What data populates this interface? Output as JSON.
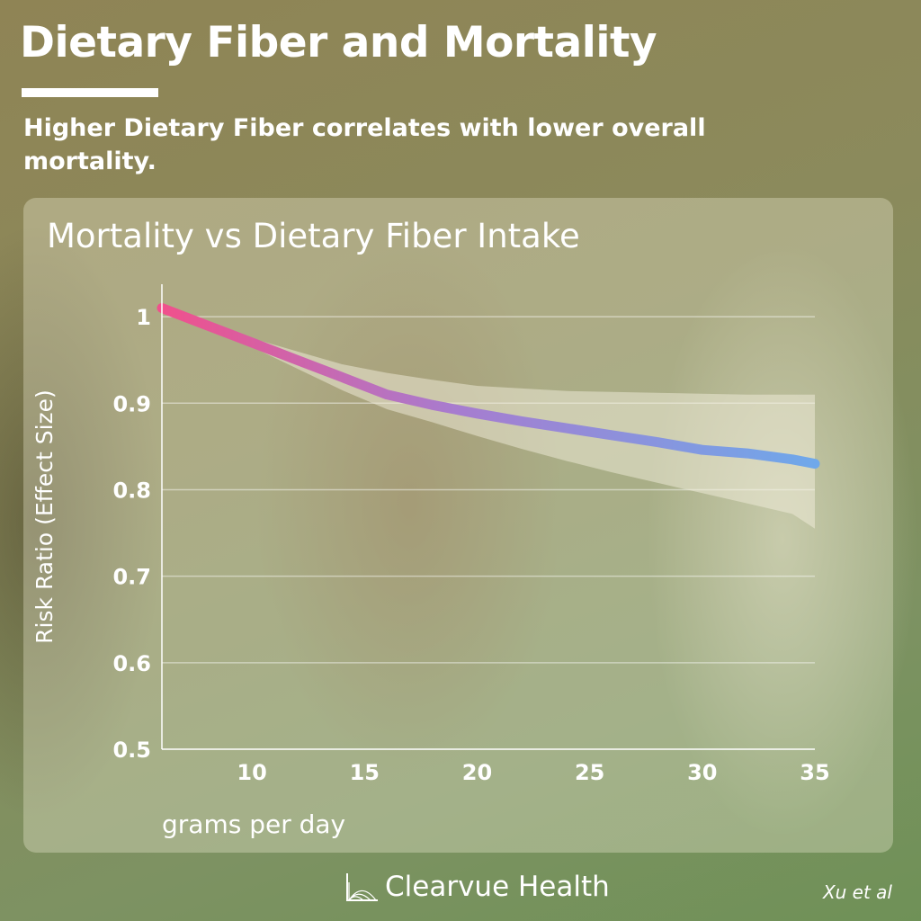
{
  "header": {
    "title": "Dietary Fiber and Mortality",
    "subtitle": "Higher Dietary Fiber correlates with lower overall mortality."
  },
  "footer": {
    "brand": "Clearvue Health",
    "credit": "Xu et al"
  },
  "colors": {
    "line_start": "#f0508c",
    "line_mid": "#a77ccf",
    "line_end": "#6fa8ea",
    "band": "#f2eedc"
  },
  "chart_data": {
    "type": "line",
    "title": "Mortality vs Dietary Fiber Intake",
    "xlabel": "grams per day",
    "ylabel": "Risk Ratio (Effect Size)",
    "xlim": [
      6,
      35
    ],
    "ylim": [
      0.5,
      1.05
    ],
    "x_ticks": [
      10,
      15,
      20,
      25,
      30,
      35
    ],
    "y_ticks": [
      0.5,
      0.6,
      0.7,
      0.8,
      0.9,
      1
    ],
    "y_tick_labels": [
      "0.5",
      "0.6",
      "0.7",
      "0.8",
      "0.9",
      "1"
    ],
    "grid": true,
    "series": [
      {
        "x": [
          6,
          8,
          10,
          12,
          14,
          16,
          18,
          20,
          22,
          24,
          26,
          28,
          30,
          32,
          34,
          35
        ],
        "values": [
          1.01,
          0.99,
          0.97,
          0.95,
          0.93,
          0.91,
          0.898,
          0.888,
          0.879,
          0.871,
          0.863,
          0.855,
          0.846,
          0.842,
          0.835,
          0.83
        ],
        "lower": [
          1.01,
          0.99,
          0.965,
          0.94,
          0.915,
          0.893,
          0.878,
          0.862,
          0.847,
          0.833,
          0.82,
          0.808,
          0.796,
          0.784,
          0.772,
          0.755
        ],
        "upper": [
          1.01,
          0.99,
          0.975,
          0.96,
          0.945,
          0.935,
          0.927,
          0.92,
          0.917,
          0.914,
          0.913,
          0.912,
          0.911,
          0.91,
          0.91,
          0.91
        ]
      }
    ]
  }
}
